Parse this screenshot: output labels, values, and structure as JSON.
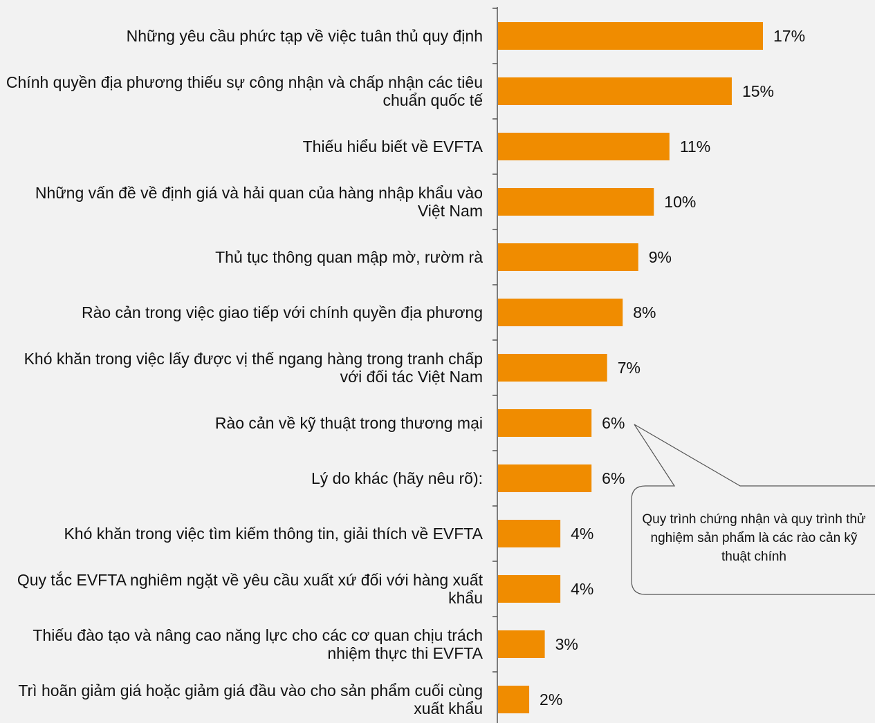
{
  "chart_data": {
    "type": "bar",
    "orientation": "horizontal",
    "categories": [
      "Những yêu cầu phức tạp về việc tuân thủ quy định",
      "Chính quyền địa phương thiếu sự công nhận và chấp nhận các tiêu chuẩn quốc tế",
      "Thiếu hiểu biết về EVFTA",
      "Những vấn đề về định giá và hải quan của hàng nhập khẩu vào Việt Nam",
      "Thủ tục thông quan mập mờ, rườm rà",
      "Rào cản trong việc giao tiếp với chính quyền địa phương",
      "Khó khăn trong việc lấy được vị thế ngang hàng trong tranh chấp với đối tác Việt Nam",
      "Rào cản về kỹ thuật trong thương mại",
      "Lý do khác (hãy nêu rõ):",
      "Khó khăn trong việc tìm kiếm thông tin, giải thích về EVFTA",
      "Quy tắc EVFTA nghiêm ngặt về yêu cầu xuất xứ đối với hàng xuất khẩu",
      "Thiếu đào tạo và nâng cao năng lực cho các cơ quan chịu trách nhiệm thực thi EVFTA",
      "Trì hoãn giảm giá hoặc giảm giá đầu vào cho sản phẩm cuối cùng xuất khẩu"
    ],
    "values": [
      17,
      15,
      11,
      10,
      9,
      8,
      7,
      6,
      6,
      4,
      4,
      3,
      2
    ],
    "value_labels": [
      "17%",
      "15%",
      "11%",
      "10%",
      "9%",
      "8%",
      "7%",
      "6%",
      "6%",
      "4%",
      "4%",
      "3%",
      "2%"
    ],
    "color": "#f08c00",
    "annotation": "Quy trình chứng nhận và quy trình thử nghiệm sản phẩm là các rào cản kỹ thuật chính"
  }
}
